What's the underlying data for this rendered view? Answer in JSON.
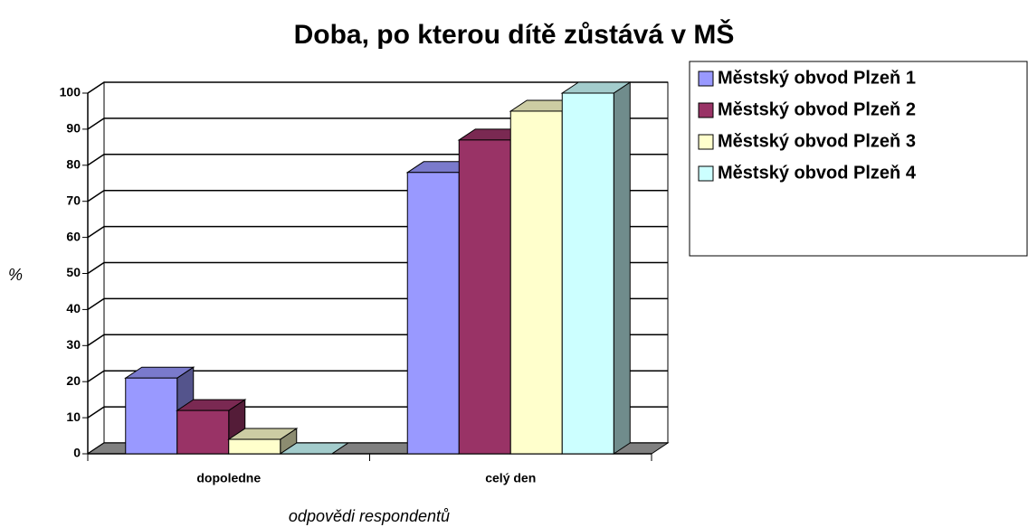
{
  "chart_data": {
    "type": "bar3d",
    "title": "Doba, po kterou dítě zůstává v MŠ",
    "x_label": "odpovědi respondentů",
    "y_label": "%",
    "categories": [
      "dopoledne",
      "celý den"
    ],
    "series": [
      {
        "name": "Městský obvod Plzeň 1",
        "color": "#9999ff",
        "values": [
          21,
          78
        ]
      },
      {
        "name": "Městský obvod Plzeň 2",
        "color": "#993366",
        "values": [
          12,
          87
        ]
      },
      {
        "name": "Městský obvod Plzeň 3",
        "color": "#ffffcc",
        "values": [
          4,
          95
        ]
      },
      {
        "name": "Městský obvod Plzeň 4",
        "color": "#ccffff",
        "values": [
          0,
          100
        ]
      }
    ],
    "ylim": [
      0,
      100
    ],
    "yticks": [
      0,
      10,
      20,
      30,
      40,
      50,
      60,
      70,
      80,
      90,
      100
    ],
    "grid": true,
    "legend": "right"
  }
}
